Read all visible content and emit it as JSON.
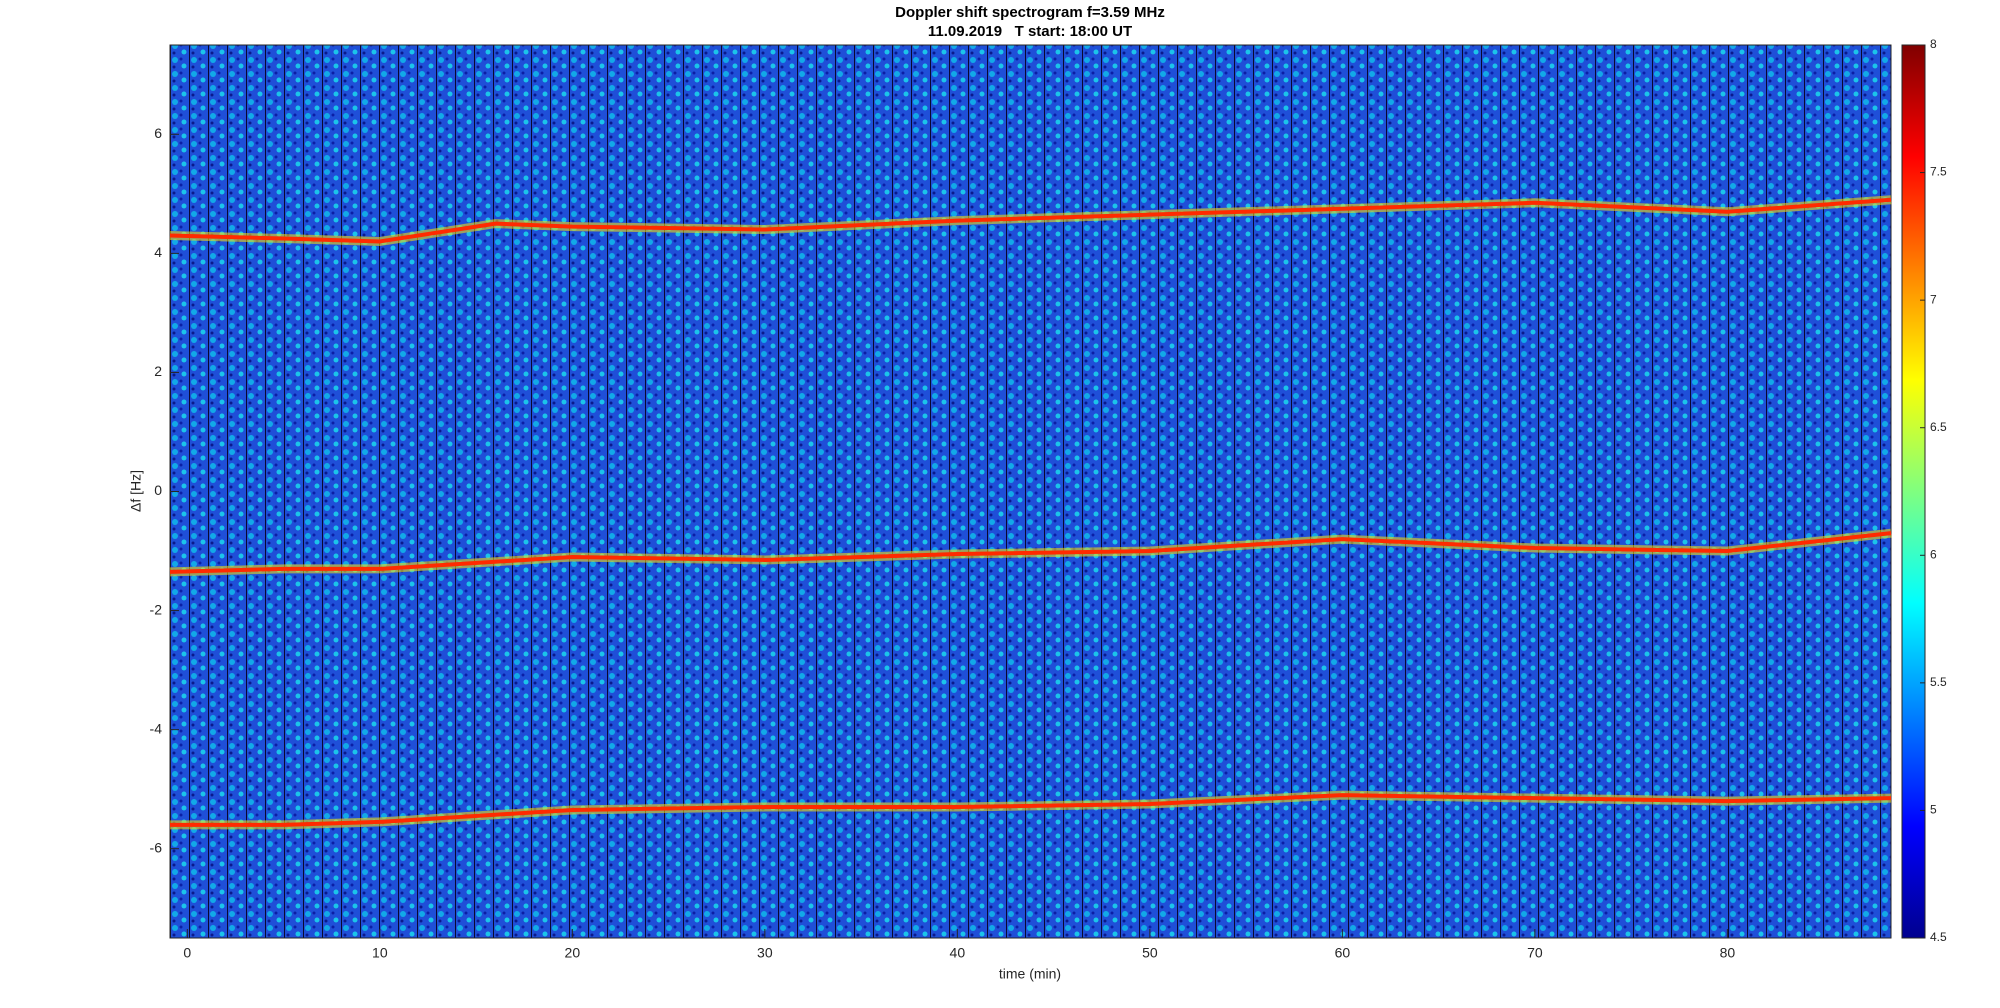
{
  "chart_data": {
    "type": "spectrogram",
    "title": "Doppler shift spectrogram f=3.59 MHz",
    "subtitle": "11.09.2019   T start: 18:00 UT",
    "x_label": "time (min)",
    "y_label": "Δf [Hz]",
    "xlim": [
      -0.9,
      88.5
    ],
    "xticks": [
      0,
      10,
      20,
      30,
      40,
      50,
      60,
      70,
      80
    ],
    "ylim": [
      -7.5,
      7.5
    ],
    "yticks": [
      -6,
      -4,
      -2,
      0,
      2,
      4,
      6
    ],
    "clim": [
      4.5,
      8
    ],
    "cticks": [
      4.5,
      5,
      5.5,
      6,
      6.5,
      7,
      7.5,
      8
    ],
    "colormap": "jet",
    "traces": [
      {
        "color": "#ff2a00",
        "x": [
          -0.9,
          5,
          10,
          16,
          20,
          30,
          40,
          50,
          60,
          70,
          80,
          88.5
        ],
        "values": [
          4.3,
          4.25,
          4.2,
          4.5,
          4.45,
          4.4,
          4.55,
          4.65,
          4.75,
          4.85,
          4.7,
          4.9
        ]
      },
      {
        "color": "#ff2a00",
        "x": [
          -0.9,
          5,
          10,
          20,
          30,
          40,
          50,
          60,
          70,
          80,
          88.5
        ],
        "values": [
          -1.35,
          -1.3,
          -1.3,
          -1.1,
          -1.15,
          -1.05,
          -1.0,
          -0.8,
          -0.95,
          -1.0,
          -0.7
        ]
      },
      {
        "color": "#ff2a00",
        "x": [
          -0.9,
          5,
          10,
          20,
          30,
          40,
          50,
          60,
          70,
          80,
          88.5
        ],
        "values": [
          -5.6,
          -5.6,
          -5.55,
          -5.35,
          -5.3,
          -5.3,
          -5.25,
          -5.1,
          -5.15,
          -5.2,
          -5.15
        ]
      }
    ]
  }
}
